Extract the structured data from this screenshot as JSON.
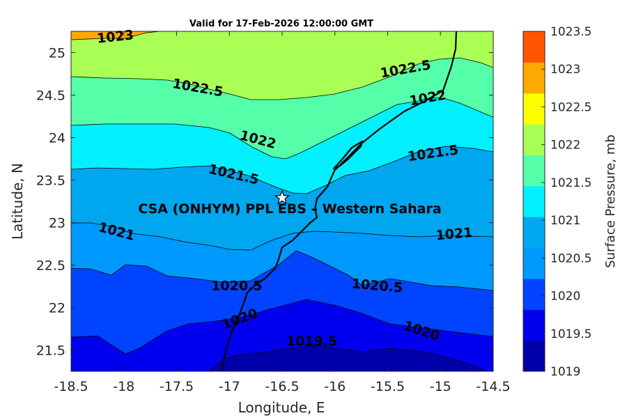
{
  "chart_data": {
    "type": "contour-map",
    "title": "Valid for 17-Feb-2026 12:00:00 GMT",
    "xlabel": "Longitude, E",
    "ylabel": "Latitude, N",
    "xlim": [
      -18.5,
      -14.5
    ],
    "ylim": [
      21.25,
      25.25
    ],
    "xticks": [
      -18.5,
      -18,
      -17.5,
      -17,
      -16.5,
      -16,
      -15.5,
      -15,
      -14.5
    ],
    "xtick_labels": [
      "-18.5",
      "-18",
      "-17.5",
      "-17",
      "-16.5",
      "-16",
      "-15.5",
      "-15",
      "-14.5"
    ],
    "yticks": [
      21.5,
      22,
      22.5,
      23,
      23.5,
      24,
      24.5,
      25
    ],
    "ytick_labels": [
      "21.5",
      "22",
      "22.5",
      "23",
      "23.5",
      "24",
      "24.5",
      "25"
    ],
    "colorbar": {
      "label": "Surface Pressure, mb",
      "levels": [
        1019,
        1019.5,
        1020,
        1020.5,
        1021,
        1021.5,
        1022,
        1022.5,
        1023,
        1023.5
      ],
      "level_labels": [
        "1019",
        "1019.5",
        "1020",
        "1020.5",
        "1021",
        "1021.5",
        "1022",
        "1022.5",
        "1023",
        "1023.5"
      ],
      "colors": [
        "#0000aa",
        "#0000ee",
        "#0044ff",
        "#0099ff",
        "#00a6ee",
        "#00f0ff",
        "#55ffaa",
        "#aaff55",
        "#ffff00",
        "#ffaa00",
        "#ff5500"
      ]
    },
    "contour_labels": [
      {
        "text": "1023",
        "lon": -18.08,
        "lat": 25.18,
        "rot": -6
      },
      {
        "text": "1022.5",
        "lon": -17.3,
        "lat": 24.58,
        "rot": 10
      },
      {
        "text": "1022.5",
        "lon": -15.33,
        "lat": 24.8,
        "rot": -10
      },
      {
        "text": "1022",
        "lon": -16.73,
        "lat": 23.97,
        "rot": 15
      },
      {
        "text": "1022",
        "lon": -15.12,
        "lat": 24.46,
        "rot": -10
      },
      {
        "text": "1021.5",
        "lon": -16.96,
        "lat": 23.56,
        "rot": 13
      },
      {
        "text": "1021.5",
        "lon": -15.07,
        "lat": 23.81,
        "rot": -8
      },
      {
        "text": "1021",
        "lon": -18.07,
        "lat": 22.89,
        "rot": 15
      },
      {
        "text": "1021",
        "lon": -14.87,
        "lat": 22.86,
        "rot": -5
      },
      {
        "text": "1020.5",
        "lon": -16.93,
        "lat": 22.25,
        "rot": 0
      },
      {
        "text": "1020.5",
        "lon": -15.6,
        "lat": 22.25,
        "rot": 5
      },
      {
        "text": "1020",
        "lon": -16.9,
        "lat": 21.86,
        "rot": -20
      },
      {
        "text": "1020",
        "lon": -15.18,
        "lat": 21.72,
        "rot": 18
      },
      {
        "text": "1019.5",
        "lon": -16.22,
        "lat": 21.6,
        "rot": 0
      }
    ],
    "site": {
      "label": "CSA (ONHYM) PPL EBS – Western Sahara",
      "marker": "star",
      "lon": -16.5,
      "lat": 23.29
    }
  }
}
